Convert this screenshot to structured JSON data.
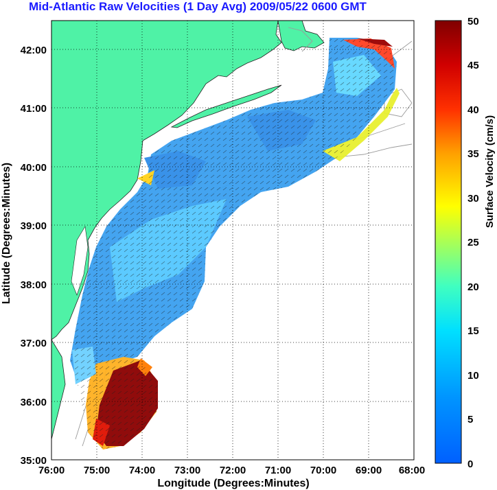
{
  "title": "Mid-Atlantic Raw Velocities (1 Day Avg) 2009/05/22 0600 GMT",
  "title_color": "#1a1aff",
  "xlabel": "Longitude (Degrees:Minutes)",
  "ylabel": "Latitude (Degrees:Minutes)",
  "colorbar_label": "Surface Velocity (cm/s)",
  "x_ticks": [
    "76:00",
    "75:00",
    "74:00",
    "73:00",
    "72:00",
    "71:00",
    "70:00",
    "69:00",
    "68:00"
  ],
  "y_ticks": [
    "42:00",
    "41:00",
    "40:00",
    "39:00",
    "38:00",
    "37:00",
    "36:00",
    "35:00"
  ],
  "colorbar_ticks": [
    "50",
    "45",
    "40",
    "35",
    "30",
    "25",
    "20",
    "15",
    "10",
    "5",
    "0"
  ],
  "chart_data": {
    "type": "heatmap",
    "xlim": [
      -76,
      -68
    ],
    "ylim": [
      35,
      42.5
    ],
    "clim": [
      0,
      50
    ],
    "colormap": "jet",
    "land_color": "#4ff2a6",
    "grid": "dotted"
  }
}
